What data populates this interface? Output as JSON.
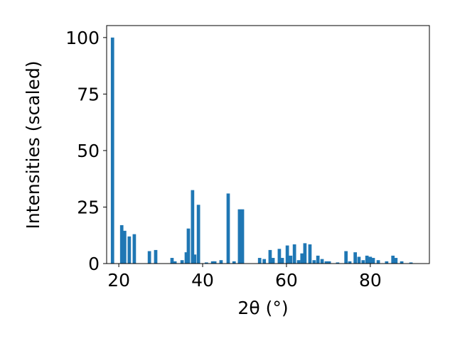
{
  "chart_data": {
    "type": "bar",
    "xlabel": "2θ (°)",
    "ylabel": "Intensities (scaled)",
    "color": "#1f77b4",
    "x": [
      18.5,
      20.7,
      21.4,
      22.5,
      23.7,
      27.3,
      28.8,
      32.7,
      33.4,
      35.1,
      36.1,
      36.6,
      37.6,
      38.1,
      39.0,
      40.9,
      42.4,
      42.9,
      44.4,
      46.1,
      47.5,
      48.8,
      49.5,
      53.6,
      54.7,
      56.1,
      56.8,
      58.3,
      59.0,
      60.2,
      61.0,
      61.9,
      62.9,
      63.7,
      64.4,
      65.6,
      66.6,
      67.5,
      68.5,
      69.5,
      70.2,
      72.2,
      74.2,
      75.1,
      76.4,
      77.3,
      78.3,
      79.2,
      80.0,
      80.7,
      81.9,
      83.9,
      85.4,
      86.1,
      87.5,
      89.7
    ],
    "values": [
      100,
      17,
      14.5,
      12,
      13,
      5.5,
      6,
      2.5,
      1,
      1.5,
      5,
      15.5,
      32.5,
      4,
      26,
      0.5,
      1,
      1,
      1.5,
      31,
      1,
      24,
      24,
      2.5,
      2,
      6,
      2.5,
      6.5,
      2.5,
      8,
      3.5,
      8.5,
      1.5,
      4.5,
      9,
      8.5,
      1.5,
      3.5,
      2,
      1,
      1,
      0.5,
      5.5,
      1,
      5,
      3,
      1.5,
      3.5,
      3,
      2.5,
      1.5,
      1,
      3.5,
      2.5,
      1,
      0.5
    ],
    "xlim": [
      17.1,
      94.1
    ],
    "ylim": [
      0,
      105.3
    ],
    "xticks": [
      20,
      40,
      60,
      80
    ],
    "yticks": [
      0,
      25,
      50,
      75,
      100
    ]
  }
}
